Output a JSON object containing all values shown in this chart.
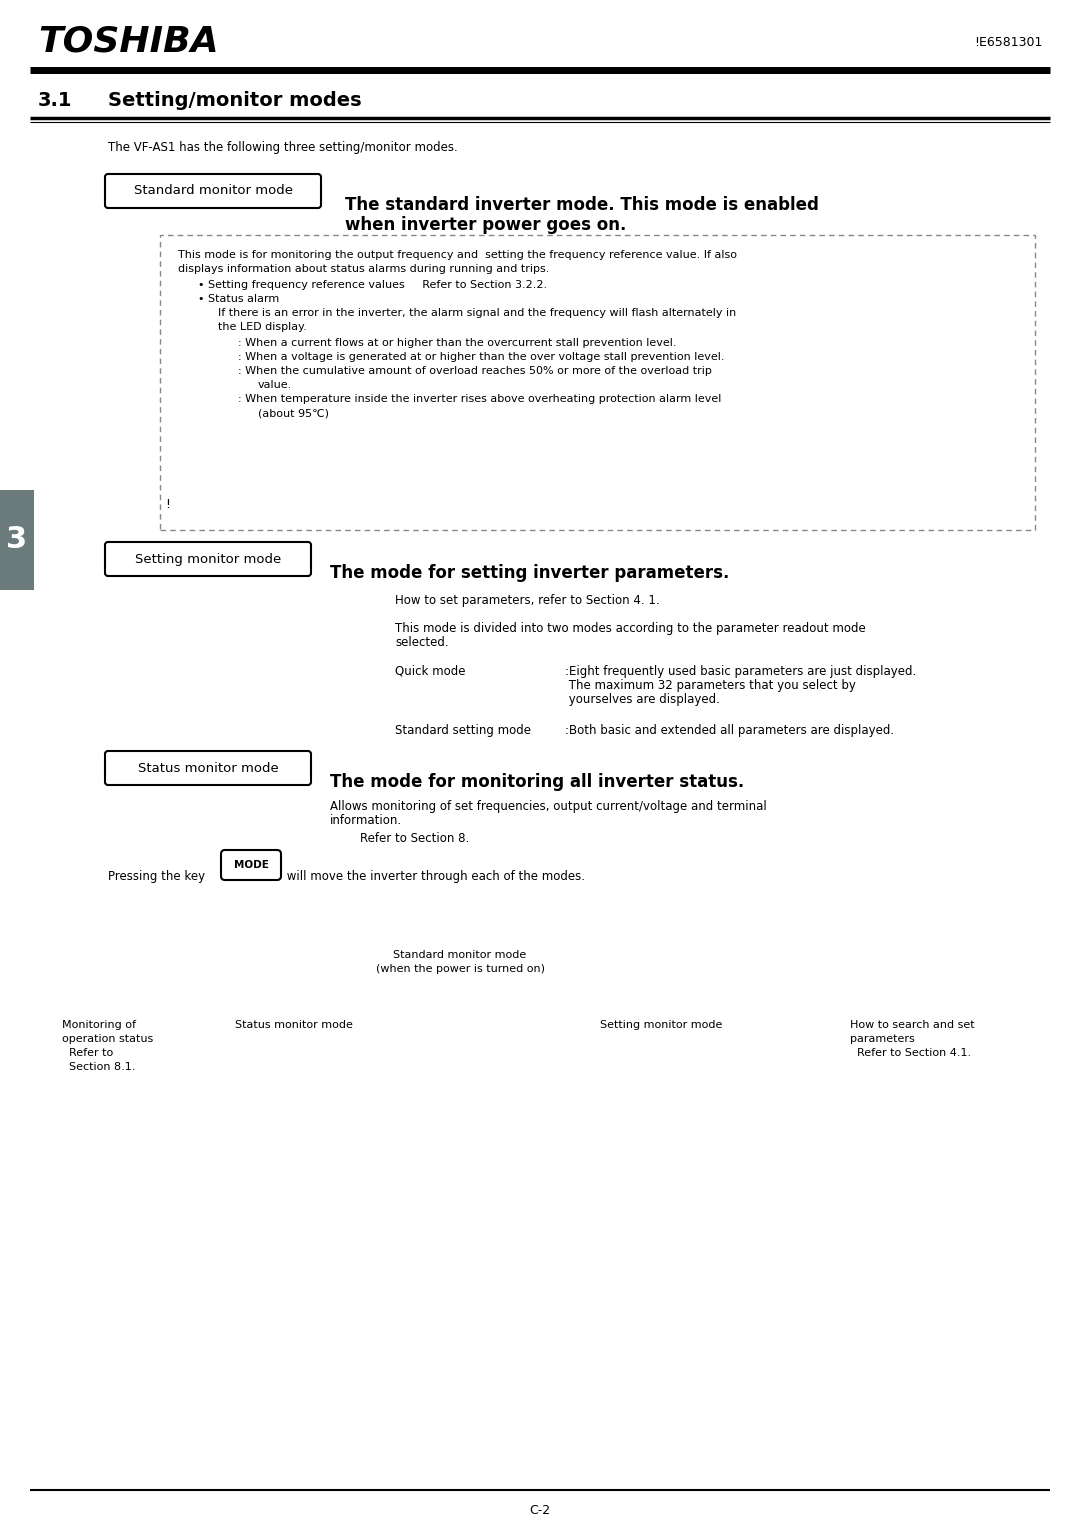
{
  "page_width": 10.8,
  "page_height": 15.32,
  "bg_color": "#ffffff",
  "header_brand": "TOSHIBA",
  "header_doc": "!E6581301",
  "section_number": "3.1",
  "section_title": "Setting/monitor modes",
  "intro_text": "The VF-AS1 has the following three setting/monitor modes.",
  "tab_text": "3",
  "tab_bg": "#6b7b7b",
  "tab_fg": "#ffffff",
  "mode1_label": "Standard monitor mode",
  "mode1_heading_line1": "The standard inverter mode. This mode is enabled",
  "mode1_heading_line2": "when inverter power goes on.",
  "mode2_label": "Setting monitor mode",
  "mode2_heading": "The mode for setting inverter parameters.",
  "mode3_label": "Status monitor mode",
  "mode3_heading": "The mode for monitoring all inverter status.",
  "box_lines": [
    "This mode is for monitoring the output frequency and  setting the frequency reference value. If also",
    "displays information about status alarms during running and trips.",
    "• Setting frequency reference values     Refer to Section 3.2.2.",
    "• Status alarm",
    "If there is an error in the inverter, the alarm signal and the frequency will flash alternately in",
    "the LED display.",
    ": When a current flows at or higher than the overcurrent stall prevention level.",
    ": When a voltage is generated at or higher than the over voltage stall prevention level.",
    ": When the cumulative amount of overload reaches 50% or more of the overload trip",
    "value.",
    ": When temperature inside the inverter rises above overheating protection alarm level",
    "(about 95℃)"
  ],
  "setting_texts": [
    "How to set parameters, refer to Section 4. 1.",
    "",
    "This mode is divided into two modes according to the parameter readout mode",
    "selected."
  ],
  "quick_mode_label": "Quick mode",
  "quick_mode_desc1": ":Eight frequently used basic parameters are just displayed.",
  "quick_mode_desc2": " The maximum 32 parameters that you select by",
  "quick_mode_desc3": " yourselves are displayed.",
  "std_setting_label": "Standard setting mode",
  "std_setting_desc": ":Both basic and extended all parameters are displayed.",
  "status_texts": [
    "Allows monitoring of set frequencies, output current/voltage and terminal",
    "information.",
    "Refer to Section 8."
  ],
  "mode_key_prefix": "Pressing the key ",
  "mode_key_label": "MODE",
  "mode_key_suffix": " will move the inverter through each of the modes.",
  "diag_std_line1": "Standard monitor mode",
  "diag_std_line2": "(when the power is turned on)",
  "diag_mon_line1": "Monitoring of",
  "diag_mon_line2": "operation status",
  "diag_mon_line3": "  Refer to",
  "diag_mon_line4": "  Section 8.1.",
  "diag_status": "Status monitor mode",
  "diag_setting": "Setting monitor mode",
  "diag_howto_line1": "How to search and set",
  "diag_howto_line2": "parameters",
  "diag_howto_line3": "  Refer to Section 4.1.",
  "footer_text": "C-2"
}
